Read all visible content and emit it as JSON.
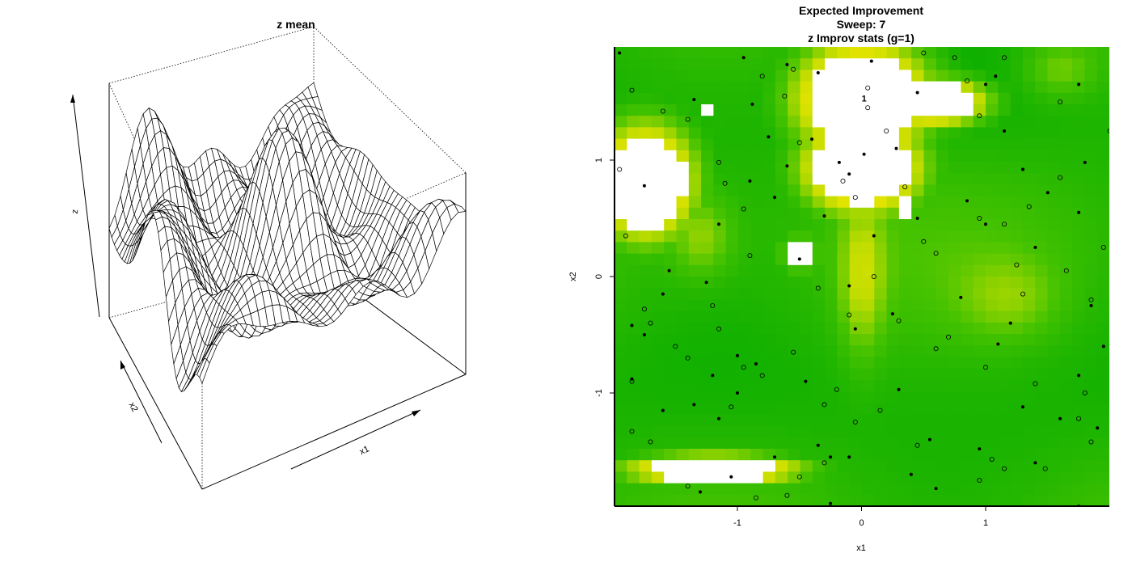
{
  "chart_data": [
    {
      "type": "surface3d",
      "title": "z mean",
      "xlabel": "x1",
      "ylabel": "x2",
      "zlabel": "z",
      "grid_nx": 36,
      "grid_ny": 36,
      "x_range": [
        -2,
        2
      ],
      "y_range": [
        -2,
        2
      ],
      "z_range": [
        -0.3,
        1.1
      ],
      "view": "perspective, viewed from front-left, x1 axis running bottom-center to right, x2 axis running front-left to back"
    },
    {
      "type": "heatmap",
      "title": "Expected Improvement",
      "subtitle_1": "Sweep: 7",
      "subtitle_2": "z Improv stats (g=1)",
      "xlabel": "x1",
      "ylabel": "x2",
      "xlim": [
        -2,
        2
      ],
      "ylim": [
        -2,
        2
      ],
      "xticks": [
        -1,
        0,
        1
      ],
      "yticks": [
        -1,
        0,
        1
      ],
      "colorscale": "terrain (low = green, mid = yellow, high = tan/pink, highest = white)",
      "peak_label": "1",
      "peak_label_position": [
        0.02,
        1.53
      ],
      "hot_regions": [
        {
          "cx": -0.0,
          "cy": 1.55,
          "rx": 0.42,
          "ry": 0.38,
          "level": 1.0
        },
        {
          "cx": -0.0,
          "cy": 0.95,
          "rx": 0.38,
          "ry": 0.32,
          "level": 0.95
        },
        {
          "cx": 0.55,
          "cy": 1.52,
          "rx": 0.35,
          "ry": 0.16,
          "level": 0.92
        },
        {
          "cx": -1.75,
          "cy": 0.82,
          "rx": 0.32,
          "ry": 0.4,
          "level": 0.9
        },
        {
          "cx": -1.2,
          "cy": -1.68,
          "rx": 0.55,
          "ry": 0.1,
          "level": 0.88
        },
        {
          "cx": -0.5,
          "cy": 0.2,
          "rx": 0.1,
          "ry": 0.1,
          "level": 0.86
        },
        {
          "cx": 0.35,
          "cy": 0.6,
          "rx": 0.06,
          "ry": 0.1,
          "level": 0.85
        },
        {
          "cx": -1.25,
          "cy": 1.45,
          "rx": 0.05,
          "ry": 0.05,
          "level": 0.85
        }
      ],
      "points_filled": [
        [
          -1.95,
          1.92
        ],
        [
          -1.35,
          1.52
        ],
        [
          -0.95,
          1.88
        ],
        [
          -0.88,
          1.48
        ],
        [
          -0.6,
          1.82
        ],
        [
          -0.35,
          1.75
        ],
        [
          0.08,
          1.85
        ],
        [
          0.45,
          1.58
        ],
        [
          1.0,
          1.65
        ],
        [
          1.08,
          1.72
        ],
        [
          1.75,
          1.65
        ],
        [
          -0.75,
          1.2
        ],
        [
          -0.4,
          1.18
        ],
        [
          -0.18,
          0.98
        ],
        [
          -0.1,
          0.88
        ],
        [
          0.02,
          1.05
        ],
        [
          -0.6,
          0.95
        ],
        [
          0.28,
          1.1
        ],
        [
          1.15,
          1.25
        ],
        [
          1.3,
          0.92
        ],
        [
          1.5,
          0.72
        ],
        [
          1.8,
          0.98
        ],
        [
          -1.75,
          0.78
        ],
        [
          -1.15,
          0.45
        ],
        [
          -0.9,
          0.82
        ],
        [
          -0.7,
          0.68
        ],
        [
          -0.3,
          0.52
        ],
        [
          0.1,
          0.35
        ],
        [
          0.45,
          0.5
        ],
        [
          0.85,
          0.65
        ],
        [
          1.0,
          0.45
        ],
        [
          1.4,
          0.25
        ],
        [
          1.75,
          0.55
        ],
        [
          -0.5,
          0.15
        ],
        [
          -1.55,
          0.05
        ],
        [
          -1.6,
          -0.15
        ],
        [
          -1.25,
          -0.05
        ],
        [
          -0.1,
          -0.08
        ],
        [
          0.25,
          -0.32
        ],
        [
          0.8,
          -0.18
        ],
        [
          1.2,
          -0.4
        ],
        [
          1.85,
          -0.25
        ],
        [
          -2.0,
          -0.25
        ],
        [
          -1.85,
          -0.42
        ],
        [
          -1.75,
          -0.5
        ],
        [
          -1.2,
          -0.85
        ],
        [
          -1.0,
          -0.68
        ],
        [
          -0.85,
          -0.75
        ],
        [
          -0.05,
          -0.45
        ],
        [
          -0.45,
          -0.9
        ],
        [
          0.3,
          -0.97
        ],
        [
          1.1,
          -0.58
        ],
        [
          1.75,
          -0.85
        ],
        [
          1.95,
          -0.6
        ],
        [
          -1.85,
          -0.88
        ],
        [
          -1.6,
          -1.15
        ],
        [
          -1.35,
          -1.1
        ],
        [
          -1.15,
          -1.22
        ],
        [
          -1.0,
          -1.0
        ],
        [
          -0.35,
          -1.45
        ],
        [
          -0.1,
          -1.55
        ],
        [
          0.55,
          -1.4
        ],
        [
          0.95,
          -1.48
        ],
        [
          1.3,
          -1.12
        ],
        [
          1.6,
          -1.22
        ],
        [
          1.9,
          -1.3
        ],
        [
          -1.3,
          -1.85
        ],
        [
          -1.05,
          -1.72
        ],
        [
          -0.7,
          -1.55
        ],
        [
          -0.25,
          -1.55
        ],
        [
          0.4,
          -1.7
        ],
        [
          0.6,
          -1.82
        ],
        [
          1.4,
          -1.6
        ],
        [
          -0.25,
          -1.95
        ]
      ],
      "points_open": [
        [
          -1.85,
          1.6
        ],
        [
          -1.6,
          1.42
        ],
        [
          -1.4,
          1.35
        ],
        [
          -0.8,
          1.72
        ],
        [
          -0.55,
          1.78
        ],
        [
          -0.5,
          1.15
        ],
        [
          -0.62,
          1.55
        ],
        [
          0.05,
          1.62
        ],
        [
          0.05,
          1.45
        ],
        [
          0.2,
          1.25
        ],
        [
          0.5,
          1.92
        ],
        [
          0.75,
          1.88
        ],
        [
          0.85,
          1.68
        ],
        [
          0.95,
          1.38
        ],
        [
          1.15,
          1.88
        ],
        [
          1.6,
          1.5
        ],
        [
          2.0,
          1.25
        ],
        [
          -1.95,
          0.92
        ],
        [
          -1.15,
          0.98
        ],
        [
          -1.1,
          0.8
        ],
        [
          -0.95,
          0.58
        ],
        [
          -0.15,
          0.82
        ],
        [
          -0.05,
          0.68
        ],
        [
          0.35,
          0.77
        ],
        [
          0.5,
          0.3
        ],
        [
          0.6,
          0.2
        ],
        [
          0.95,
          0.5
        ],
        [
          1.15,
          0.45
        ],
        [
          1.25,
          0.1
        ],
        [
          1.35,
          0.6
        ],
        [
          1.6,
          0.85
        ],
        [
          1.65,
          0.05
        ],
        [
          1.95,
          0.25
        ],
        [
          -1.9,
          0.35
        ],
        [
          -0.9,
          0.18
        ],
        [
          -0.35,
          -0.1
        ],
        [
          0.1,
          0.0
        ],
        [
          1.3,
          -0.15
        ],
        [
          1.85,
          -0.2
        ],
        [
          -1.75,
          -0.28
        ],
        [
          -1.7,
          -0.4
        ],
        [
          -1.5,
          -0.6
        ],
        [
          -1.2,
          -0.25
        ],
        [
          -1.15,
          -0.45
        ],
        [
          -0.55,
          -0.65
        ],
        [
          -0.1,
          -0.33
        ],
        [
          0.3,
          -0.38
        ],
        [
          0.7,
          -0.52
        ],
        [
          0.6,
          -0.62
        ],
        [
          -1.85,
          -0.9
        ],
        [
          -1.85,
          -1.33
        ],
        [
          -1.4,
          -0.7
        ],
        [
          -0.95,
          -0.78
        ],
        [
          -0.8,
          -0.85
        ],
        [
          -0.2,
          -0.97
        ],
        [
          -0.3,
          -1.1
        ],
        [
          -0.05,
          -1.25
        ],
        [
          0.15,
          -1.15
        ],
        [
          1.0,
          -0.78
        ],
        [
          1.4,
          -0.92
        ],
        [
          1.8,
          -1.0
        ],
        [
          -1.7,
          -1.42
        ],
        [
          -1.05,
          -1.12
        ],
        [
          -1.4,
          -1.8
        ],
        [
          -0.85,
          -1.9
        ],
        [
          -0.5,
          -1.72
        ],
        [
          -0.3,
          -1.6
        ],
        [
          0.45,
          -1.45
        ],
        [
          0.95,
          -1.75
        ],
        [
          1.05,
          -1.57
        ],
        [
          1.15,
          -1.65
        ],
        [
          1.48,
          -1.65
        ],
        [
          1.75,
          -1.22
        ],
        [
          1.85,
          -1.42
        ],
        [
          -0.6,
          -1.88
        ],
        [
          1.75,
          -1.98
        ]
      ]
    }
  ]
}
